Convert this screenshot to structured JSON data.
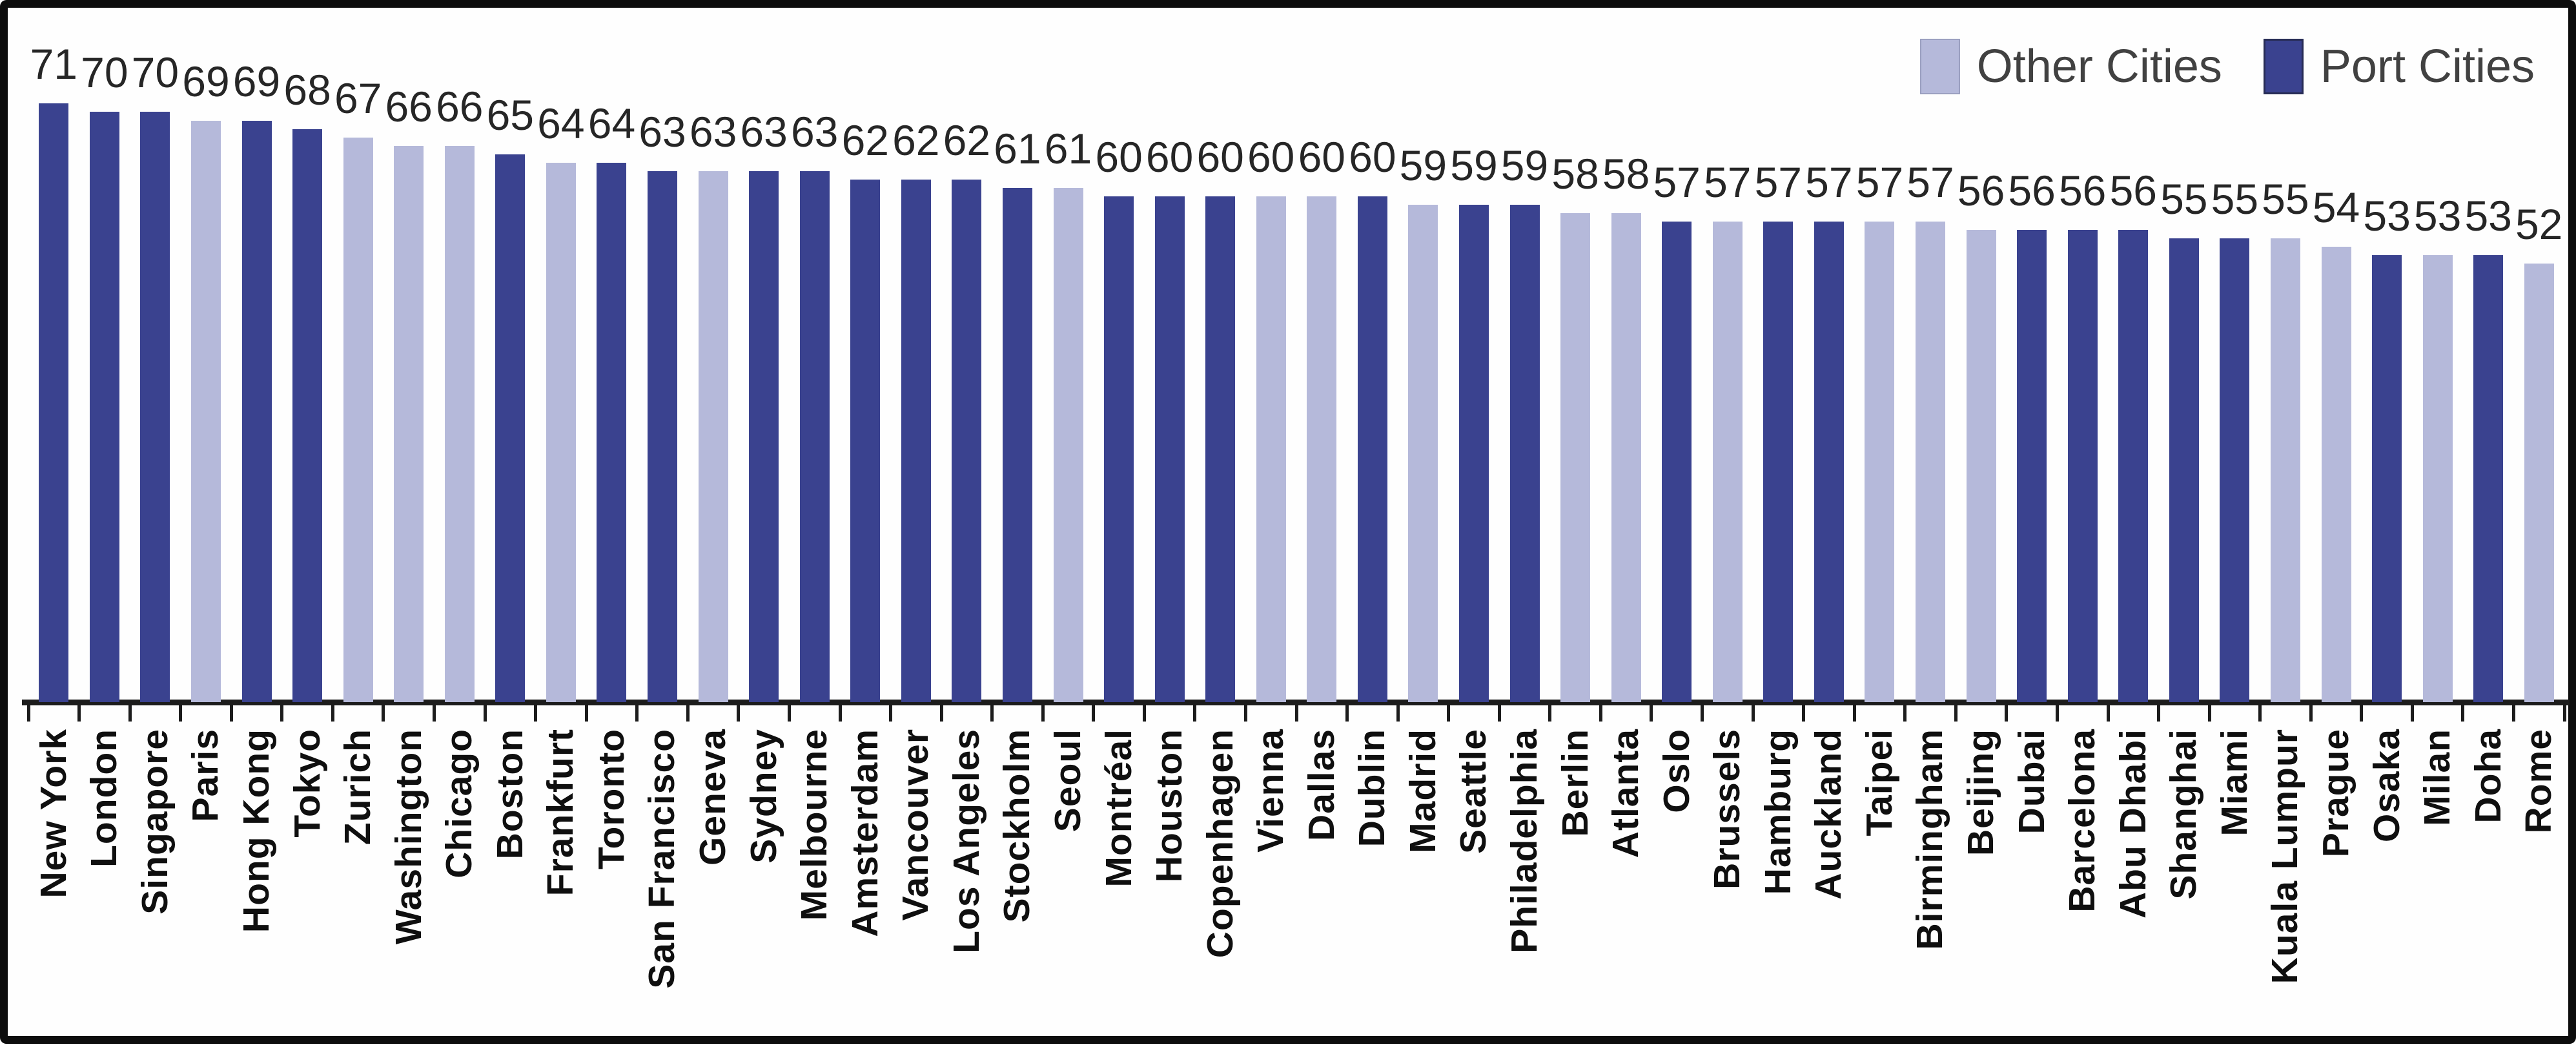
{
  "colors": {
    "port": "#3a428f",
    "other": "#b5b9da",
    "axis": "#1c1c1c",
    "value_label": "#262626",
    "category_label": "#0f0f0f",
    "legend_text": "#414141",
    "frame": "#0d0d0d",
    "background": "#fefefe"
  },
  "chart_data": {
    "type": "bar",
    "title": "",
    "xlabel": "",
    "ylabel": "",
    "grid": false,
    "legend_position": "top-right",
    "legend": [
      {
        "label": "Other Cities",
        "key": "other",
        "color": "#b5b9da"
      },
      {
        "label": "Port Cities",
        "key": "port",
        "color": "#3a428f"
      }
    ],
    "bars": [
      {
        "city": "New York",
        "value": 71,
        "group": "port"
      },
      {
        "city": "London",
        "value": 70,
        "group": "port"
      },
      {
        "city": "Singapore",
        "value": 70,
        "group": "port"
      },
      {
        "city": "Paris",
        "value": 69,
        "group": "other"
      },
      {
        "city": "Hong Kong",
        "value": 69,
        "group": "port"
      },
      {
        "city": "Tokyo",
        "value": 68,
        "group": "port"
      },
      {
        "city": "Zurich",
        "value": 67,
        "group": "other"
      },
      {
        "city": "Washington",
        "value": 66,
        "group": "other"
      },
      {
        "city": "Chicago",
        "value": 66,
        "group": "other"
      },
      {
        "city": "Boston",
        "value": 65,
        "group": "port"
      },
      {
        "city": "Frankfurt",
        "value": 64,
        "group": "other"
      },
      {
        "city": "Toronto",
        "value": 64,
        "group": "port"
      },
      {
        "city": "San Francisco",
        "value": 63,
        "group": "port"
      },
      {
        "city": "Geneva",
        "value": 63,
        "group": "other"
      },
      {
        "city": "Sydney",
        "value": 63,
        "group": "port"
      },
      {
        "city": "Melbourne",
        "value": 63,
        "group": "port"
      },
      {
        "city": "Amsterdam",
        "value": 62,
        "group": "port"
      },
      {
        "city": "Vancouver",
        "value": 62,
        "group": "port"
      },
      {
        "city": "Los Angeles",
        "value": 62,
        "group": "port"
      },
      {
        "city": "Stockholm",
        "value": 61,
        "group": "port"
      },
      {
        "city": "Seoul",
        "value": 61,
        "group": "other"
      },
      {
        "city": "Montréal",
        "value": 60,
        "group": "port"
      },
      {
        "city": "Houston",
        "value": 60,
        "group": "port"
      },
      {
        "city": "Copenhagen",
        "value": 60,
        "group": "port"
      },
      {
        "city": "Vienna",
        "value": 60,
        "group": "other"
      },
      {
        "city": "Dallas",
        "value": 60,
        "group": "other"
      },
      {
        "city": "Dublin",
        "value": 60,
        "group": "port"
      },
      {
        "city": "Madrid",
        "value": 59,
        "group": "other"
      },
      {
        "city": "Seattle",
        "value": 59,
        "group": "port"
      },
      {
        "city": "Philadelphia",
        "value": 59,
        "group": "port"
      },
      {
        "city": "Berlin",
        "value": 58,
        "group": "other"
      },
      {
        "city": "Atlanta",
        "value": 58,
        "group": "other"
      },
      {
        "city": "Oslo",
        "value": 57,
        "group": "port"
      },
      {
        "city": "Brussels",
        "value": 57,
        "group": "other"
      },
      {
        "city": "Hamburg",
        "value": 57,
        "group": "port"
      },
      {
        "city": "Auckland",
        "value": 57,
        "group": "port"
      },
      {
        "city": "Taipei",
        "value": 57,
        "group": "other"
      },
      {
        "city": "Birmingham",
        "value": 57,
        "group": "other"
      },
      {
        "city": "Beijing",
        "value": 56,
        "group": "other"
      },
      {
        "city": "Dubai",
        "value": 56,
        "group": "port"
      },
      {
        "city": "Barcelona",
        "value": 56,
        "group": "port"
      },
      {
        "city": "Abu Dhabi",
        "value": 56,
        "group": "port"
      },
      {
        "city": "Shanghai",
        "value": 55,
        "group": "port"
      },
      {
        "city": "Miami",
        "value": 55,
        "group": "port"
      },
      {
        "city": "Kuala Lumpur",
        "value": 55,
        "group": "other"
      },
      {
        "city": "Prague",
        "value": 54,
        "group": "other"
      },
      {
        "city": "Osaka",
        "value": 53,
        "group": "port"
      },
      {
        "city": "Milan",
        "value": 53,
        "group": "other"
      },
      {
        "city": "Doha",
        "value": 53,
        "group": "port"
      },
      {
        "city": "Rome",
        "value": 52,
        "group": "other"
      }
    ]
  }
}
